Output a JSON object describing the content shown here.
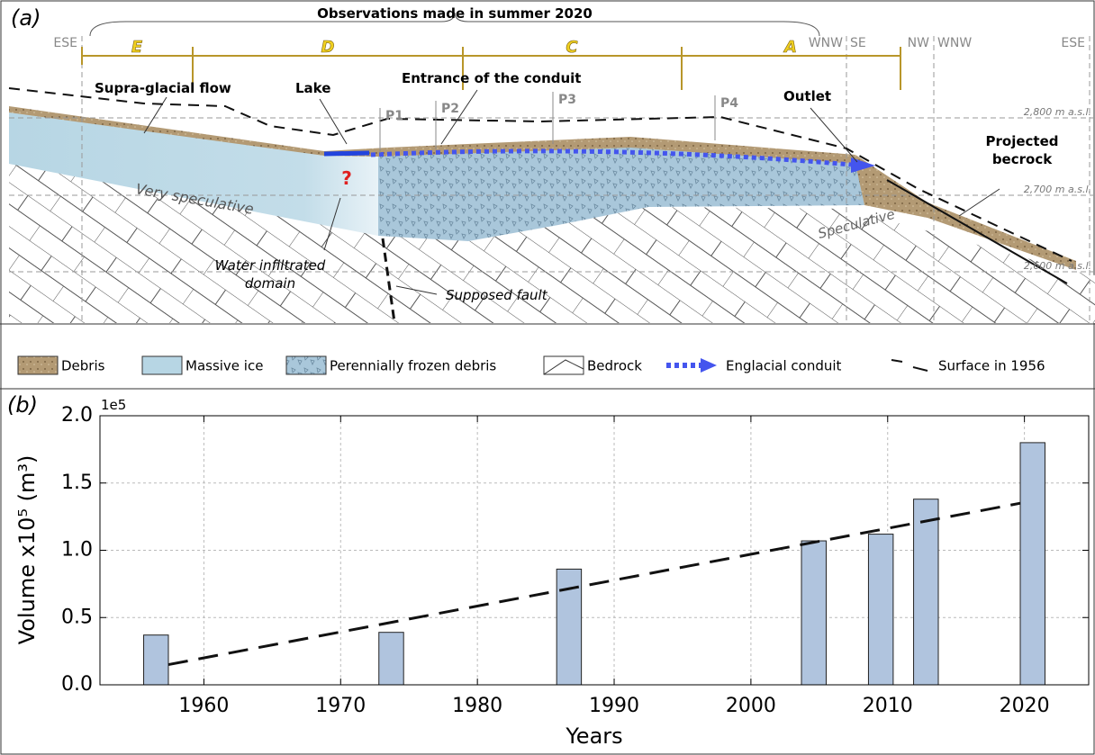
{
  "panel_a": {
    "label": "(a)",
    "observation_title": "Observations made in summer 2020",
    "sections": [
      "E",
      "D",
      "C",
      "A"
    ],
    "directions": [
      "ESE",
      "WNW",
      "SE",
      "NW",
      "WNW",
      "ESE"
    ],
    "annotations": {
      "supra_glacial": "Supra-glacial flow",
      "lake": "Lake",
      "entrance": "Entrance of the conduit",
      "outlet": "Outlet",
      "projected": [
        "Projected",
        "becrock"
      ],
      "question": "?",
      "very_speculative": "Very speculative",
      "water_infiltrated": [
        "Water infiltrated",
        "domain"
      ],
      "fault": "Supposed fault",
      "speculative": "Speculative"
    },
    "profiles": [
      "P1",
      "P2",
      "P3",
      "P4"
    ],
    "altitudes": [
      "2,800 m a.s.l.",
      "2,700 m a.s.l.",
      "2,600 m a.s.l."
    ],
    "legend": [
      "Debris",
      "Massive ice",
      "Perennially frozen debris",
      "Bedrock",
      "Englacial conduit",
      "Surface in 1956"
    ]
  },
  "chart_data": {
    "type": "bar",
    "title": "(b)",
    "xlabel": "Years",
    "ylabel": "Volume x10⁵ (m³)",
    "y_offset_label": "1e5",
    "x": [
      1956.5,
      1973.7,
      1986.7,
      2004.6,
      2009.5,
      2012.8,
      2020.6
    ],
    "values": [
      0.37,
      0.39,
      0.86,
      1.07,
      1.12,
      1.38,
      1.8
    ],
    "color": "#b0c4de",
    "trend": {
      "type": "line",
      "x": [
        1957.4,
        2019.7
      ],
      "values": [
        0.15,
        1.35
      ],
      "color": "#111111"
    },
    "xlim": [
      1952.4,
      2024.7
    ],
    "ylim": [
      0,
      2.0
    ],
    "xticks": [
      1960,
      1970,
      1980,
      1990,
      2000,
      2010,
      2020
    ],
    "yticks": [
      {
        "value": 0,
        "label": "0.0"
      },
      {
        "value": 0.5,
        "label": "0.5"
      },
      {
        "value": 1.0,
        "label": "1.0"
      },
      {
        "value": 1.5,
        "label": "1.5"
      },
      {
        "value": 2.0,
        "label": "2.0"
      }
    ],
    "grid": true
  }
}
